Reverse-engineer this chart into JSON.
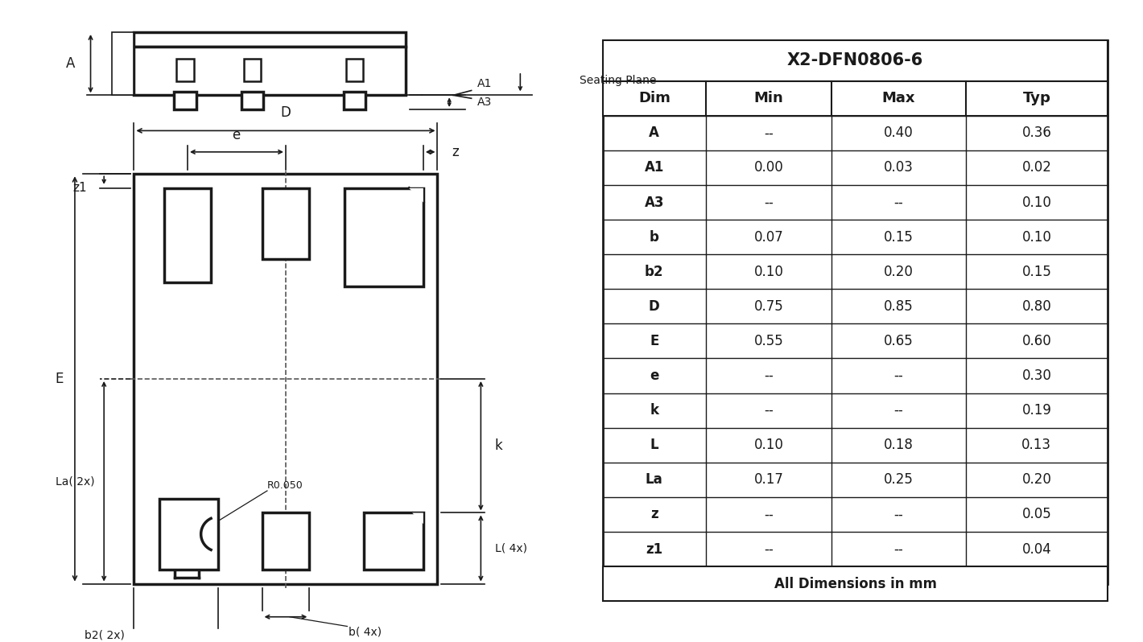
{
  "table_title": "X2-DFN0806-6",
  "table_headers": [
    "Dim",
    "Min",
    "Max",
    "Typ"
  ],
  "table_rows": [
    [
      "A",
      "--",
      "0.40",
      "0.36"
    ],
    [
      "A1",
      "0.00",
      "0.03",
      "0.02"
    ],
    [
      "A3",
      "--",
      "--",
      "0.10"
    ],
    [
      "b",
      "0.07",
      "0.15",
      "0.10"
    ],
    [
      "b2",
      "0.10",
      "0.20",
      "0.15"
    ],
    [
      "D",
      "0.75",
      "0.85",
      "0.80"
    ],
    [
      "E",
      "0.55",
      "0.65",
      "0.60"
    ],
    [
      "e",
      "--",
      "--",
      "0.30"
    ],
    [
      "k",
      "--",
      "--",
      "0.19"
    ],
    [
      "L",
      "0.10",
      "0.18",
      "0.13"
    ],
    [
      "La",
      "0.17",
      "0.25",
      "0.20"
    ],
    [
      "z",
      "--",
      "--",
      "0.05"
    ],
    [
      "z1",
      "--",
      "--",
      "0.04"
    ]
  ],
  "table_footer": "All Dimensions in mm",
  "bg_color": "#ffffff",
  "line_color": "#1a1a1a"
}
